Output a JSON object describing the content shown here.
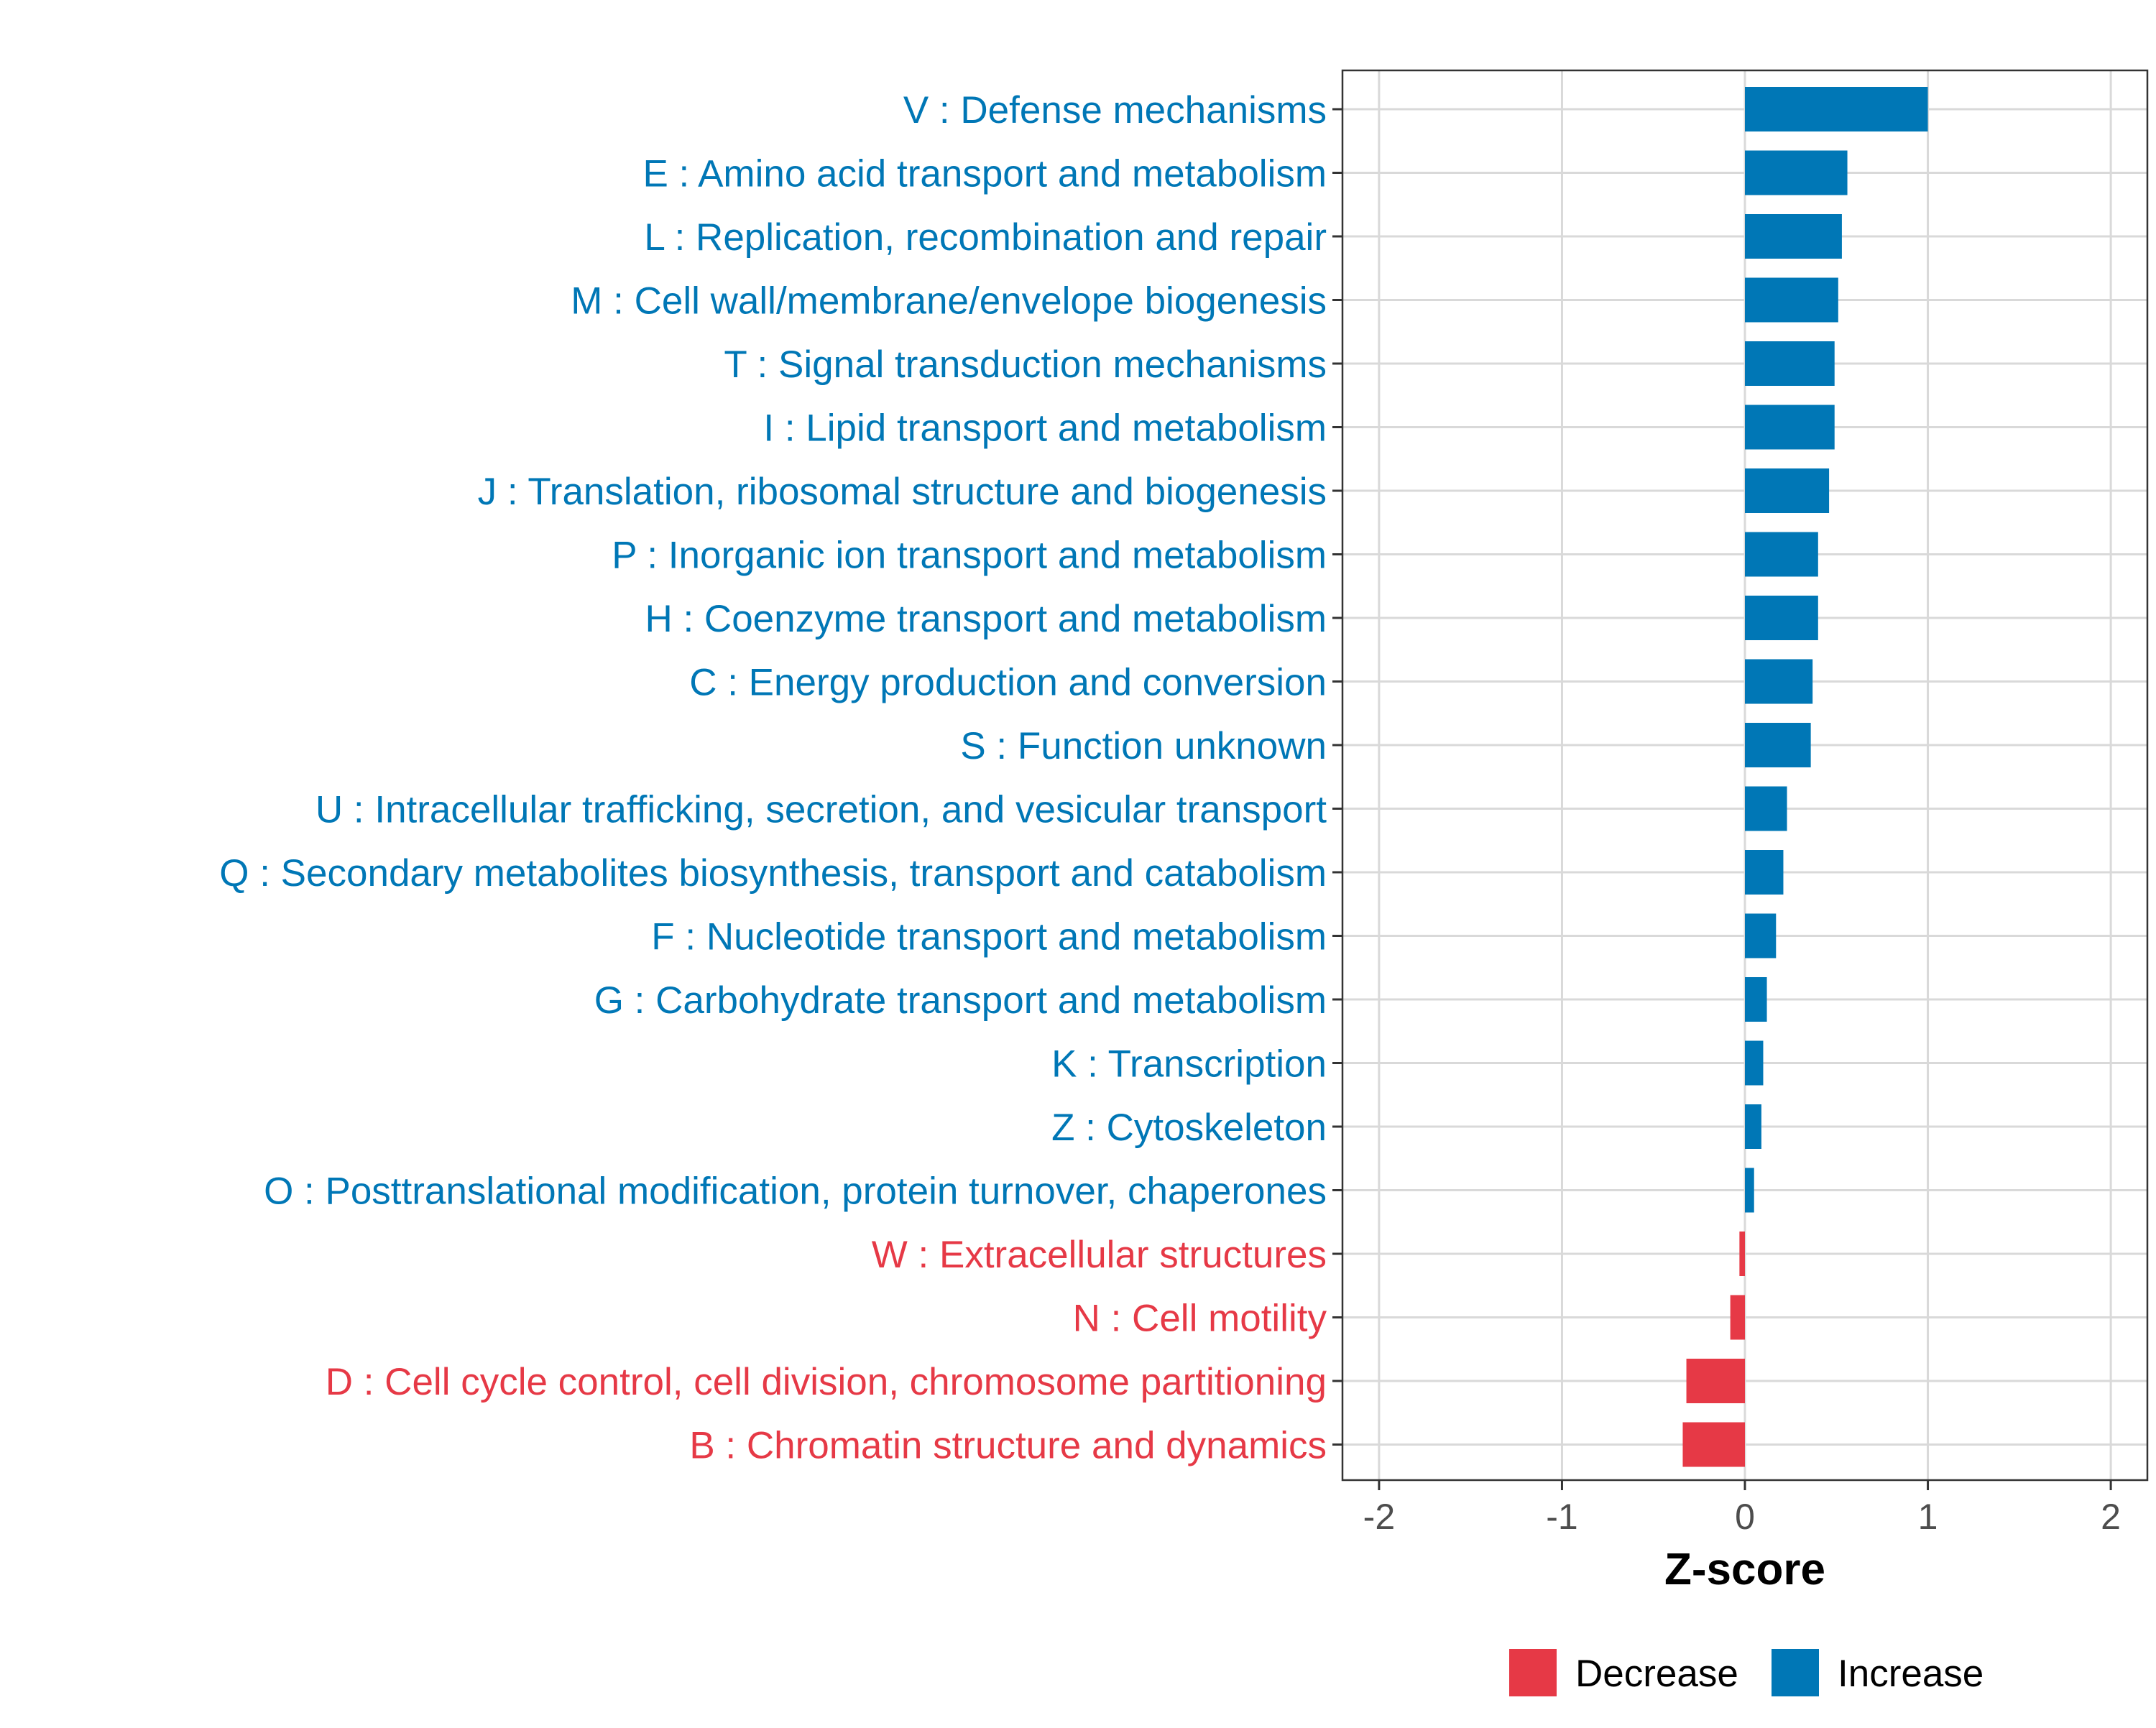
{
  "chart_data": {
    "type": "bar",
    "orientation": "horizontal",
    "title": "",
    "xlabel": "Z-score",
    "ylabel": "",
    "xlim": [
      -2.2,
      2.2
    ],
    "x_ticks": [
      -2,
      -1,
      0,
      1,
      2
    ],
    "x_tick_labels": [
      "-2",
      "-1",
      "0",
      "1",
      "2"
    ],
    "grid": true,
    "legend_position": "bottom",
    "colors": {
      "Decrease": "#E63946",
      "Increase": "#0077B6"
    },
    "legend": [
      {
        "name": "Decrease",
        "color": "#E63946"
      },
      {
        "name": "Increase",
        "color": "#0077B6"
      }
    ],
    "bars": [
      {
        "label": "V : Defense mechanisms",
        "value": 1.0,
        "group": "Increase"
      },
      {
        "label": "E : Amino acid transport and metabolism",
        "value": 0.56,
        "group": "Increase"
      },
      {
        "label": "L : Replication, recombination and repair",
        "value": 0.53,
        "group": "Increase"
      },
      {
        "label": "M : Cell wall/membrane/envelope biogenesis",
        "value": 0.51,
        "group": "Increase"
      },
      {
        "label": "T : Signal transduction mechanisms",
        "value": 0.49,
        "group": "Increase"
      },
      {
        "label": "I : Lipid transport and metabolism",
        "value": 0.49,
        "group": "Increase"
      },
      {
        "label": "J : Translation, ribosomal structure and biogenesis",
        "value": 0.46,
        "group": "Increase"
      },
      {
        "label": "P : Inorganic ion transport and metabolism",
        "value": 0.4,
        "group": "Increase"
      },
      {
        "label": "H : Coenzyme transport and metabolism",
        "value": 0.4,
        "group": "Increase"
      },
      {
        "label": "C : Energy production and conversion",
        "value": 0.37,
        "group": "Increase"
      },
      {
        "label": "S : Function unknown",
        "value": 0.36,
        "group": "Increase"
      },
      {
        "label": "U : Intracellular trafficking, secretion, and vesicular transport",
        "value": 0.23,
        "group": "Increase"
      },
      {
        "label": "Q : Secondary metabolites biosynthesis, transport and catabolism",
        "value": 0.21,
        "group": "Increase"
      },
      {
        "label": "F : Nucleotide transport and metabolism",
        "value": 0.17,
        "group": "Increase"
      },
      {
        "label": "G : Carbohydrate transport and metabolism",
        "value": 0.12,
        "group": "Increase"
      },
      {
        "label": "K : Transcription",
        "value": 0.1,
        "group": "Increase"
      },
      {
        "label": "Z : Cytoskeleton",
        "value": 0.09,
        "group": "Increase"
      },
      {
        "label": "O : Posttranslational modification, protein turnover, chaperones",
        "value": 0.05,
        "group": "Increase"
      },
      {
        "label": "W : Extracellular structures",
        "value": -0.03,
        "group": "Decrease"
      },
      {
        "label": "N : Cell motility",
        "value": -0.08,
        "group": "Decrease"
      },
      {
        "label": "D : Cell cycle control, cell division, chromosome partitioning",
        "value": -0.32,
        "group": "Decrease"
      },
      {
        "label": "B : Chromatin structure and dynamics",
        "value": -0.34,
        "group": "Decrease"
      }
    ]
  }
}
